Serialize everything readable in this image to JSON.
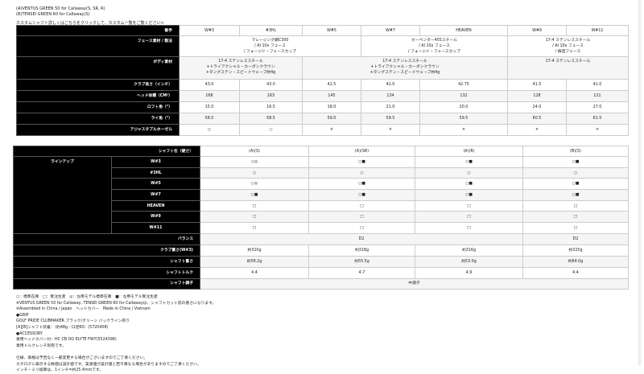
{
  "shafts": [
    "(A)VENTUS GREEN 50 for Callaway(S, SR, R)",
    "(B)TENSEI GREEN 60 for Callaway(S)"
  ],
  "custom_link": "カスタムシャフト詳しくはこちらをクリックして、カスタム一覧をご覧ください>",
  "spec": {
    "header_label": "番手",
    "models": [
      "W#3",
      "#3HL",
      "W#5",
      "W#7",
      "HEAVEN",
      "W#9",
      "W#11"
    ],
    "face_label": "フェース素材 / 製法",
    "face": [
      "マレージング鋼C300\n/ AI 10x フェース\n/ フォージド・フェースカップ",
      "カーペンター455スチール\n/ AI 10x フェース\n/ フォージド・フェースカップ",
      "17-4 ステンレススチール\n/ AI 10x フェース\n/ 鋳造フェース"
    ],
    "body_label": "ボディ素材",
    "body": [
      "17-4 ステンレススチール\n+トライアクシャル・カーボンクラウン\n+タングステン・スピードウェーブ約4g",
      "17-4 ステンレススチール\n+トライアクシャル・カーボンクラウン\n+タングステン・スピードウェーブ約4g",
      "17-4 ステンレススチール"
    ],
    "rows": [
      {
        "label": "クラブ長さ（インチ）",
        "values": [
          "43.0",
          "43.0",
          "42.5",
          "42.0",
          "42.75",
          "41.5",
          "41.0"
        ]
      },
      {
        "label": "ヘッド体積（CM³）",
        "values": [
          "168",
          "163",
          "145",
          "134",
          "132",
          "128",
          "121"
        ]
      },
      {
        "label": "ロフト角（°）",
        "values": [
          "15.0",
          "16.5",
          "18.0",
          "21.0",
          "20.0",
          "24.0",
          "27.0"
        ]
      },
      {
        "label": "ライ角（°）",
        "values": [
          "58.5",
          "58.5",
          "59.0",
          "59.5",
          "59.5",
          "60.5",
          "61.5"
        ]
      },
      {
        "label": "アジャスタブルホーゼル",
        "values": [
          "○",
          "○",
          "×",
          "×",
          "×",
          "×",
          "×"
        ]
      }
    ]
  },
  "shaft_table": {
    "header_label": "シャフト名（硬さ）",
    "columns": [
      "(A)(S)",
      "(A)(SR)",
      "(A)(R)",
      "(B)(S)"
    ],
    "lineup_label": "ラインアップ",
    "lineup": [
      {
        "model": "W#3",
        "values": [
          "○◎",
          "○■",
          "○■",
          "○■"
        ]
      },
      {
        "model": "#3HL",
        "values": [
          "○",
          "○",
          "○",
          "○"
        ]
      },
      {
        "model": "W#5",
        "values": [
          "○◎",
          "○■",
          "○■",
          "○■"
        ]
      },
      {
        "model": "W#7",
        "values": [
          "○■",
          "○■",
          "○■",
          "○■"
        ]
      },
      {
        "model": "HEAVEN",
        "values": [
          "□",
          "□",
          "□",
          "□"
        ]
      },
      {
        "model": "W#9",
        "values": [
          "□",
          "□",
          "□",
          "□"
        ]
      },
      {
        "model": "W#11",
        "values": [
          "□",
          "□",
          "□",
          "□"
        ]
      }
    ],
    "balance_label": "バランス",
    "balance": [
      "D2",
      "D2"
    ],
    "weight_label": "クラブ重さ(W#3)",
    "weight": [
      "約320g",
      "約318g",
      "約316g",
      "約325g"
    ],
    "shaft_weight_label": "シャフト重さ",
    "shaft_weight": [
      "約58.2g",
      "約55.5g",
      "約53.0g",
      "約64.0g"
    ],
    "torque_label": "シャフトトルク",
    "torque": [
      "4.4",
      "4.7",
      "4.9",
      "4.4"
    ],
    "kick_label": "シャフト調子",
    "kick": "中調子"
  },
  "notes": [
    "○：標準在庫　□：受注生産　◎：左用モデル標準在庫　■：左用モデル受注生産",
    "※VENTUS GREEN 50 for Callaway, TENSEI GREEN 60 for Callawayは、シャフトカット前の重さになります。",
    "※Assembled in China / Japan　ヘッドカバー　Made in China / Vietnam",
    "●GRIP",
    "GOLF PRIDE CLUBMAKER ブラック/グリーン バックライン有り",
    "[A][B]シャフト装着：（約48g／口径60）(5720408)",
    "●ACCESSORY",
    "専用ヘッドカバー付：HC CB OO ELYTE FWY(5524398)",
    "専用トルクレンチ別売です。",
    "",
    "仕様、価格は予告なく一部変更する場合がございますのでご了承ください。",
    "カタログに表示する数値は設計値です。実測値が設計値と若干異なる場合がありますのでご了承ください。",
    "インチ・ミリ換算は、1インチ=約25.4mmです。"
  ]
}
